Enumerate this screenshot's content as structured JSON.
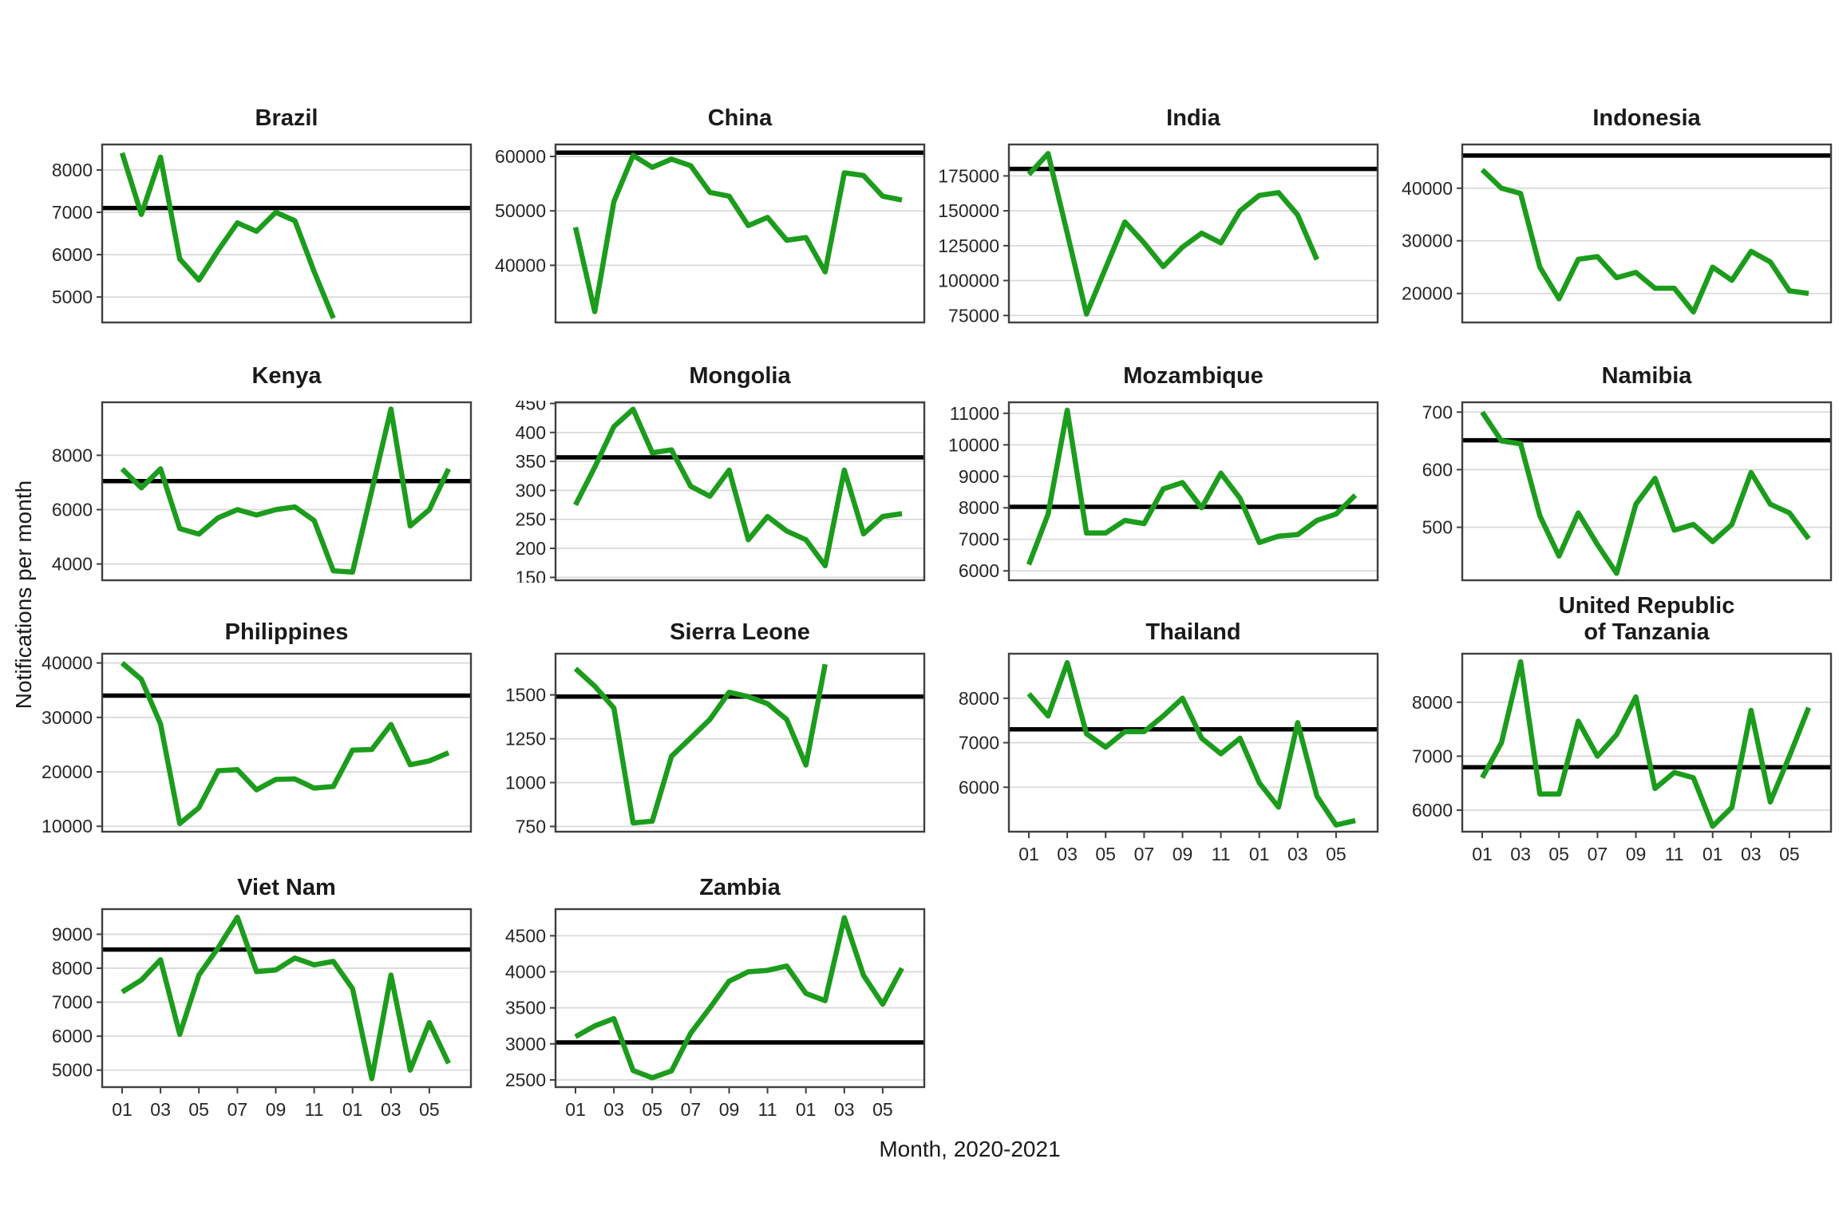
{
  "figure": {
    "ylabel": "Notifications per month",
    "xlabel": "Month, 2020-2021"
  },
  "colors": {
    "line": "#1c9c1c",
    "baseline": "#000000",
    "grid": "#d8d8d8",
    "border": "#404040",
    "tick_text": "#262626",
    "title_text": "#1a1a1a"
  },
  "chart_data": {
    "type": "line",
    "layout": "small-multiples-4-columns",
    "ylabel": "Notifications per month",
    "xlabel": "Month, 2020-2021",
    "grid": "horizontal-only",
    "legend": "none",
    "x": [
      "01",
      "02",
      "03",
      "04",
      "05",
      "06",
      "07",
      "08",
      "09",
      "10",
      "11",
      "12",
      "01",
      "02",
      "03",
      "04",
      "05",
      "06"
    ],
    "x_tick_months": [
      1,
      3,
      5,
      7,
      9,
      11,
      13,
      15,
      17
    ],
    "x_tick_labels": [
      "01",
      "03",
      "05",
      "07",
      "09",
      "11",
      "01",
      "03",
      "05"
    ],
    "series_note": "green line = monthly TB notifications 2020-2021; black horizontal line = pre-pandemic average baseline",
    "panels": [
      {
        "name": "Brazil",
        "slug": "brazil",
        "title_lines": [
          "Brazil"
        ],
        "row": 0,
        "show_x_axis": false,
        "y_ticks": [
          5000,
          6000,
          7000,
          8000
        ],
        "ylim": [
          4400,
          8600
        ],
        "baseline": 7100,
        "values": [
          8400,
          6950,
          8300,
          5900,
          5400,
          6100,
          6750,
          6550,
          7000,
          6800,
          5600,
          4500
        ]
      },
      {
        "name": "China",
        "slug": "china",
        "title_lines": [
          "China"
        ],
        "row": 0,
        "show_x_axis": false,
        "y_ticks": [
          40000,
          50000,
          60000
        ],
        "ylim": [
          29500,
          62200
        ],
        "baseline": 60700,
        "values": [
          47000,
          31500,
          51700,
          60200,
          58000,
          59500,
          58300,
          53400,
          52700,
          47300,
          48800,
          44600,
          45100,
          38800,
          57000,
          56500,
          52700,
          52000
        ]
      },
      {
        "name": "India",
        "slug": "india",
        "title_lines": [
          "India"
        ],
        "row": 0,
        "show_x_axis": false,
        "y_ticks": [
          75000,
          100000,
          125000,
          150000,
          175000
        ],
        "ylim": [
          70000,
          197500
        ],
        "baseline": 180000,
        "values": [
          176000,
          191000,
          134000,
          76000,
          109000,
          142000,
          127000,
          110000,
          124000,
          134000,
          127000,
          150000,
          161000,
          163000,
          147000,
          115000
        ]
      },
      {
        "name": "Indonesia",
        "slug": "indonesia",
        "title_lines": [
          "Indonesia"
        ],
        "row": 0,
        "show_x_axis": false,
        "y_ticks": [
          20000,
          30000,
          40000
        ],
        "ylim": [
          14500,
          48300
        ],
        "baseline": 46200,
        "values": [
          43500,
          40000,
          39000,
          25000,
          19000,
          26500,
          27000,
          23000,
          24000,
          21000,
          21000,
          16500,
          25000,
          22500,
          28000,
          26000,
          20500,
          20000
        ]
      },
      {
        "name": "Kenya",
        "slug": "kenya",
        "title_lines": [
          "Kenya"
        ],
        "row": 1,
        "show_x_axis": false,
        "y_ticks": [
          4000,
          6000,
          8000
        ],
        "ylim": [
          3400,
          9950
        ],
        "baseline": 7050,
        "values": [
          7500,
          6800,
          7500,
          5300,
          5100,
          5700,
          6000,
          5800,
          6000,
          6100,
          5600,
          3750,
          3700,
          6700,
          9700,
          5400,
          6000,
          7500
        ]
      },
      {
        "name": "Mongolia",
        "slug": "mongolia",
        "title_lines": [
          "Mongolia"
        ],
        "row": 1,
        "show_x_axis": false,
        "y_ticks": [
          150,
          200,
          250,
          300,
          350,
          400,
          450
        ],
        "ylim": [
          145,
          452
        ],
        "baseline": 357,
        "values": [
          275,
          340,
          410,
          440,
          365,
          370,
          307,
          290,
          335,
          215,
          255,
          230,
          215,
          170,
          335,
          225,
          255,
          260
        ]
      },
      {
        "name": "Mozambique",
        "slug": "mozambique",
        "title_lines": [
          "Mozambique"
        ],
        "row": 1,
        "show_x_axis": false,
        "y_ticks": [
          6000,
          7000,
          8000,
          9000,
          10000,
          11000
        ],
        "ylim": [
          5700,
          11350
        ],
        "baseline": 8030,
        "values": [
          6200,
          7800,
          11100,
          7200,
          7200,
          7600,
          7500,
          8600,
          8800,
          8000,
          9100,
          8300,
          6900,
          7100,
          7150,
          7600,
          7800,
          8400
        ]
      },
      {
        "name": "Namibia",
        "slug": "namibia",
        "title_lines": [
          "Namibia"
        ],
        "row": 1,
        "show_x_axis": false,
        "y_ticks": [
          500,
          600,
          700
        ],
        "ylim": [
          408,
          717
        ],
        "baseline": 651,
        "values": [
          700,
          650,
          645,
          520,
          450,
          525,
          470,
          420,
          540,
          585,
          495,
          505,
          475,
          505,
          595,
          540,
          525,
          480
        ]
      },
      {
        "name": "Philippines",
        "slug": "philippines",
        "title_lines": [
          "Philippines"
        ],
        "row": 2,
        "show_x_axis": false,
        "y_ticks": [
          10000,
          20000,
          30000,
          40000
        ],
        "ylim": [
          9000,
          41700
        ],
        "baseline": 34000,
        "values": [
          40000,
          37000,
          28800,
          10500,
          13400,
          20200,
          20400,
          16700,
          18600,
          18700,
          17000,
          17300,
          24000,
          24100,
          28700,
          21300,
          22000,
          23500
        ]
      },
      {
        "name": "Sierra Leone",
        "slug": "sierra-leone",
        "title_lines": [
          "Sierra Leone"
        ],
        "row": 2,
        "show_x_axis": false,
        "y_ticks": [
          750,
          1000,
          1250,
          1500
        ],
        "ylim": [
          720,
          1735
        ],
        "baseline": 1490,
        "values": [
          1650,
          1550,
          1425,
          770,
          780,
          1150,
          1255,
          1360,
          1515,
          1490,
          1450,
          1360,
          1100,
          1675
        ]
      },
      {
        "name": "Thailand",
        "slug": "thailand",
        "title_lines": [
          "Thailand"
        ],
        "row": 2,
        "show_x_axis": true,
        "y_ticks": [
          6000,
          7000,
          8000
        ],
        "ylim": [
          5000,
          9000
        ],
        "baseline": 7300,
        "values": [
          8100,
          7600,
          8800,
          7200,
          6900,
          7250,
          7250,
          7600,
          8000,
          7100,
          6750,
          7100,
          6100,
          5550,
          7450,
          5800,
          5150,
          5250
        ]
      },
      {
        "name": "United Republic of Tanzania",
        "slug": "united-republic-of-tanzania",
        "title_lines": [
          "United Republic",
          "of Tanzania"
        ],
        "row": 2,
        "show_x_axis": true,
        "y_ticks": [
          6000,
          7000,
          8000
        ],
        "ylim": [
          5600,
          8900
        ],
        "baseline": 6795,
        "values": [
          6600,
          7250,
          8750,
          6300,
          6300,
          7650,
          7000,
          7400,
          8100,
          6400,
          6700,
          6600,
          5700,
          6050,
          7850,
          6150,
          7000,
          7900
        ]
      },
      {
        "name": "Viet Nam",
        "slug": "viet-nam",
        "title_lines": [
          "Viet Nam"
        ],
        "row": 3,
        "show_x_axis": true,
        "y_ticks": [
          5000,
          6000,
          7000,
          8000,
          9000
        ],
        "ylim": [
          4500,
          9740
        ],
        "baseline": 8550,
        "values": [
          7300,
          7650,
          8250,
          6050,
          7800,
          8600,
          9500,
          7900,
          7950,
          8300,
          8100,
          8200,
          7400,
          4750,
          7800,
          5000,
          6400,
          5200
        ]
      },
      {
        "name": "Zambia",
        "slug": "zambia",
        "title_lines": [
          "Zambia"
        ],
        "row": 3,
        "show_x_axis": true,
        "y_ticks": [
          2500,
          3000,
          3500,
          4000,
          4500
        ],
        "ylim": [
          2400,
          4870
        ],
        "baseline": 3020,
        "values": [
          3100,
          3250,
          3350,
          2630,
          2530,
          2625,
          3150,
          3500,
          3870,
          4000,
          4020,
          4080,
          3700,
          3600,
          4750,
          3950,
          3550,
          4050
        ]
      }
    ]
  }
}
